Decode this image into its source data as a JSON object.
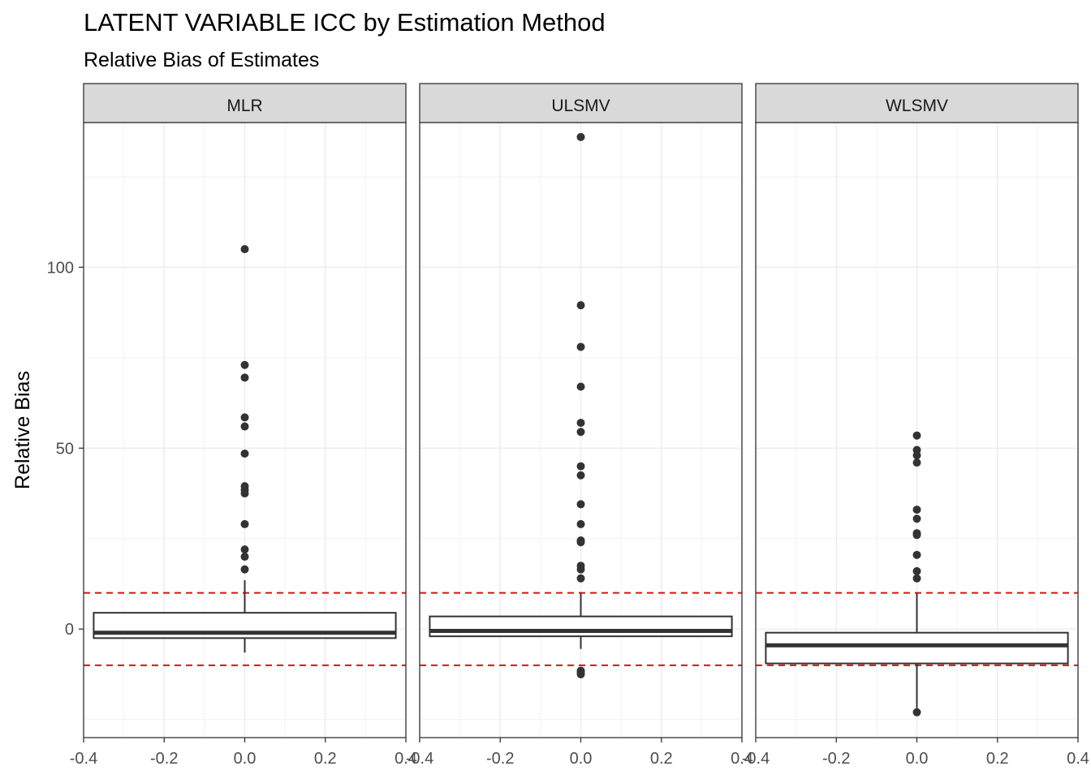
{
  "chart_data": {
    "type": "boxplot",
    "title": "LATENT VARIABLE ICC by Estimation Method",
    "subtitle": "Relative Bias of Estimates",
    "xlabel": "",
    "ylabel": "Relative Bias",
    "xlim": [
      -0.4,
      0.4
    ],
    "ylim": [
      -30,
      140
    ],
    "x_ticks": [
      -0.4,
      -0.2,
      0.0,
      0.2,
      0.4
    ],
    "x_tick_labels": [
      "-0.4",
      "-0.2",
      "0.0",
      "0.2",
      "0.4"
    ],
    "y_ticks": [
      0,
      50,
      100
    ],
    "y_tick_labels": [
      "0",
      "50",
      "100"
    ],
    "reference_lines": [
      10,
      -10
    ],
    "reference_line_color": "#dd1111",
    "box_color": "#333333",
    "grid": true,
    "panels": [
      {
        "name": "MLR",
        "box": {
          "lower": -2.5,
          "q1": -2.5,
          "median": -1,
          "q3": 4.5,
          "upper": 13.5,
          "min": -6.5
        },
        "outliers": [
          105,
          73,
          69.5,
          58.5,
          56,
          48.5,
          39.5,
          38.5,
          37.5,
          29,
          22,
          20,
          16.5
        ]
      },
      {
        "name": "ULSMV",
        "box": {
          "q1": -2,
          "median": -0.5,
          "q3": 3.5,
          "upper": 10,
          "min": -5.5
        },
        "outliers": [
          136,
          89.5,
          78,
          67,
          57,
          54.5,
          45,
          42.5,
          34.5,
          29,
          24.5,
          24,
          17.5,
          16.5,
          14,
          -11.5,
          -12,
          -12.5
        ]
      },
      {
        "name": "WLSMV",
        "box": {
          "q1": -9.5,
          "median": -4.5,
          "q3": -1,
          "upper": 10,
          "min": -22.5
        },
        "outliers": [
          53.5,
          49.5,
          48,
          46,
          33,
          30.5,
          26.5,
          26,
          20.5,
          16,
          14,
          -23
        ]
      }
    ]
  }
}
